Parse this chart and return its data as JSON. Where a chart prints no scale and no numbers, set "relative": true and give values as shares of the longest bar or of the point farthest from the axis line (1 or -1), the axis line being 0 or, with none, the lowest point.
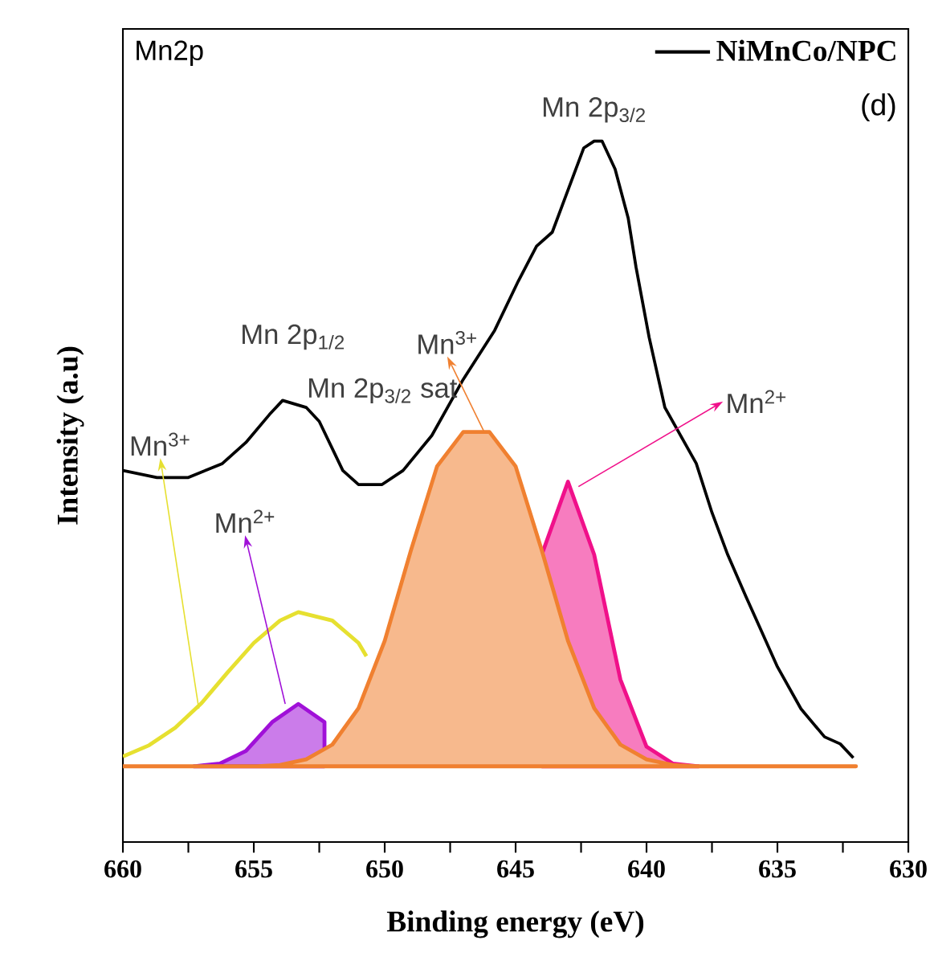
{
  "chart_data": {
    "type": "line",
    "title": "Mn2p",
    "xlabel": "Binding energy (eV)",
    "ylabel": "Intensity (a.u)",
    "relative": true,
    "xlim": [
      660,
      630
    ],
    "xticks": [
      660,
      {
        "value": 657.5,
        "label": null
      },
      655,
      {
        "value": 652.5,
        "label": null
      },
      650,
      {
        "value": 647.5,
        "label": null
      },
      645,
      {
        "value": 642.5,
        "label": null
      },
      640,
      {
        "value": 637.5,
        "label": null
      },
      635,
      {
        "value": 632.5,
        "label": null
      },
      630
    ],
    "legend": "top right",
    "grid": false,
    "series": [
      {
        "type": "line",
        "color": "#e6e030",
        "x": [
          660,
          659,
          658,
          657,
          656,
          655,
          654,
          653.3,
          652,
          651,
          650.7
        ],
        "values": [
          0.122,
          0.138,
          0.163,
          0.198,
          0.242,
          0.284,
          0.316,
          0.328,
          0.316,
          0.284,
          0.265
        ]
      },
      {
        "type": "area",
        "color": "#a010d8",
        "x": [
          657.3,
          656.3,
          655.3,
          654.3,
          653.3,
          652.3
        ],
        "values": [
          0.108,
          0.112,
          0.13,
          0.171,
          0.197,
          0.171
        ]
      },
      {
        "type": "area",
        "color": "#f0108a",
        "x": [
          644,
          643,
          642,
          641,
          640,
          639,
          638
        ],
        "values": [
          0.41,
          0.514,
          0.41,
          0.232,
          0.136,
          0.112,
          0.108
        ]
      },
      {
        "type": "area",
        "color": "#f08030",
        "x": [
          660,
          656,
          655,
          654,
          653,
          652,
          651,
          650,
          649,
          648,
          647,
          646,
          645,
          644,
          643,
          642,
          641,
          640,
          639,
          638,
          637,
          636,
          632
        ],
        "values": [
          0.108,
          0.108,
          0.108,
          0.11,
          0.118,
          0.139,
          0.191,
          0.287,
          0.416,
          0.536,
          0.585,
          0.585,
          0.536,
          0.416,
          0.287,
          0.191,
          0.139,
          0.118,
          0.11,
          0.108,
          0.108,
          0.108,
          0.108
        ]
      },
      {
        "type": "line",
        "name": "NiMnCo/NPC",
        "color": "#000000",
        "x": [
          660,
          658.7,
          657.5,
          656.2,
          655.3,
          654.4,
          653.9,
          653.0,
          652.5,
          651.6,
          651.0,
          650.1,
          649.3,
          648.2,
          647.0,
          645.8,
          644.9,
          644.2,
          643.6,
          643.0,
          642.4,
          642.0,
          641.7,
          641.2,
          640.7,
          640.4,
          639.9,
          639.3,
          638.7,
          638.1,
          637.5,
          636.9,
          636.2,
          635.6,
          635.0,
          634.1,
          633.2,
          632.6,
          632.1
        ],
        "values": [
          0.53,
          0.52,
          0.52,
          0.54,
          0.57,
          0.61,
          0.63,
          0.62,
          0.6,
          0.53,
          0.51,
          0.51,
          0.53,
          0.58,
          0.66,
          0.73,
          0.8,
          0.85,
          0.87,
          0.93,
          0.99,
          1.0,
          1.0,
          0.96,
          0.89,
          0.82,
          0.72,
          0.62,
          0.58,
          0.54,
          0.47,
          0.41,
          0.35,
          0.3,
          0.25,
          0.19,
          0.15,
          0.14,
          0.12
        ]
      }
    ],
    "annotations": [
      "(d)",
      {
        "text": "Mn 2p$_{3/2}$",
        "x": 642,
        "y": 1.0
      },
      {
        "text": "Mn 2p$_{1/2}$",
        "x": 653.5,
        "y": 0.63
      },
      "Mn 2p$_{3/2}$ sat",
      {
        "text": "Mn$^{3+}$",
        "x": 657.1,
        "y": 0.19
      },
      {
        "text": "Mn$^{2+}$",
        "x": 653.8,
        "y": 0.197
      },
      {
        "text": "Mn$^{3+}$",
        "x": 646.2,
        "y": 0.585
      },
      {
        "text": "Mn$^{2+}$",
        "x": 642.6,
        "y": 0.507
      }
    ]
  }
}
